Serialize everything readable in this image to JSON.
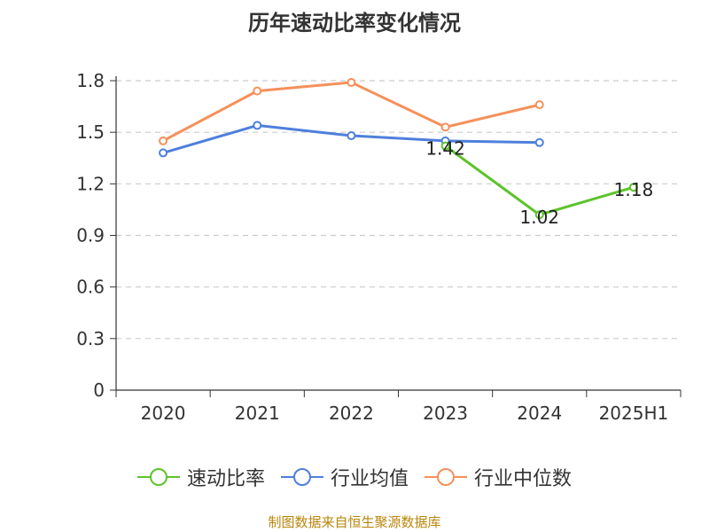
{
  "chart_data": {
    "type": "line",
    "title": "历年速动比率变化情况",
    "categories": [
      "2020",
      "2021",
      "2022",
      "2023",
      "2024",
      "2025H1"
    ],
    "ylim": [
      0,
      1.8
    ],
    "yticks": [
      "0",
      "0.3",
      "0.6",
      "0.9",
      "1.2",
      "1.5",
      "1.8"
    ],
    "grid": true,
    "legend_position": "bottom",
    "series": [
      {
        "name": "速动比率",
        "color": "#5cc42b",
        "values": [
          null,
          null,
          null,
          1.42,
          1.02,
          1.18
        ],
        "labels": [
          "",
          "",
          "",
          "1.42",
          "1.02",
          "1.18"
        ]
      },
      {
        "name": "行业均值",
        "color": "#4e7fdc",
        "values": [
          1.38,
          1.54,
          1.48,
          1.45,
          1.44,
          null
        ],
        "labels": [
          "",
          "",
          "",
          "",
          "",
          ""
        ]
      },
      {
        "name": "行业中位数",
        "color": "#f5905a",
        "values": [
          1.45,
          1.74,
          1.79,
          1.53,
          1.66,
          null
        ],
        "labels": [
          "",
          "",
          "",
          "",
          "",
          ""
        ]
      }
    ]
  },
  "footer": {
    "source": "制图数据来自恒生聚源数据库"
  }
}
